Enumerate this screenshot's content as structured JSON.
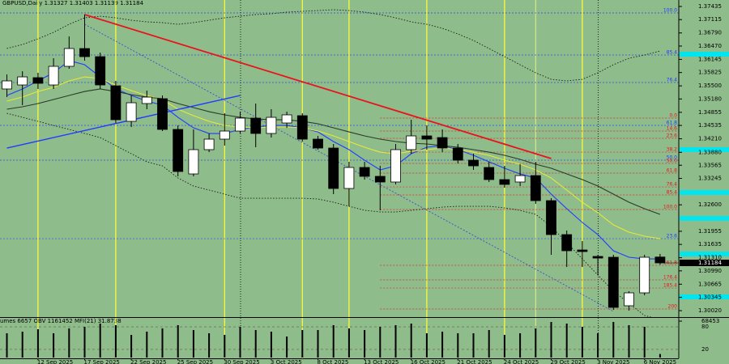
{
  "chart_data": {
    "type": "candlestick",
    "title": "GBPUSD,Daily  1.31327 1.31403 1.31139 1.31184",
    "categories": [
      null,
      null,
      "12 Sep 2025",
      null,
      null,
      "17 Sep 2025",
      null,
      null,
      "22 Sep 2025",
      null,
      null,
      "25 Sep 2025",
      null,
      null,
      "30 Sep 2025",
      null,
      null,
      "3 Oct 2025",
      null,
      null,
      "8 Oct 2025",
      null,
      null,
      "13 Oct 2025",
      null,
      null,
      "16 Oct 2025",
      null,
      null,
      "21 Oct 2025",
      null,
      null,
      "24 Oct 2025",
      null,
      null,
      "29 Oct 2025",
      null,
      null,
      "3 Nov 2025",
      null,
      null,
      "6 Nov 2025",
      null
    ],
    "open": [
      1.35424,
      1.35522,
      1.357,
      1.35522,
      1.35976,
      1.3641,
      1.36212,
      1.35502,
      1.34635,
      1.35069,
      1.35187,
      1.34438,
      1.33353,
      1.33945,
      1.34201,
      1.34398,
      1.34714,
      1.34339,
      1.34595,
      1.34773,
      1.34201,
      1.33984,
      1.32998,
      1.33511,
      1.33294,
      1.33156,
      1.33945,
      1.3428,
      1.3424,
      1.33984,
      1.33688,
      1.33511,
      1.33215,
      1.33156,
      1.33313,
      1.32702,
      1.31874,
      1.31499,
      1.31342,
      1.31322,
      1.30139,
      1.30454,
      1.31327
    ],
    "high": [
      1.35779,
      1.35857,
      1.35818,
      1.36173,
      1.36705,
      1.37238,
      1.36311,
      1.35621,
      1.35266,
      1.35384,
      1.35266,
      1.34536,
      1.34438,
      1.34339,
      1.34832,
      1.34871,
      1.35069,
      1.34931,
      1.34871,
      1.34832,
      1.3428,
      1.34083,
      1.33649,
      1.33649,
      1.3355,
      1.34083,
      1.34674,
      1.34536,
      1.34438,
      1.34083,
      1.33846,
      1.33649,
      1.3355,
      1.33589,
      1.33649,
      1.32761,
      1.31973,
      1.31716,
      1.31381,
      1.31381,
      1.30494,
      1.31381,
      1.31403
    ],
    "low": [
      1.35226,
      1.35029,
      1.35424,
      1.35424,
      1.35917,
      1.36114,
      1.35424,
      1.34595,
      1.34497,
      1.34931,
      1.34398,
      1.33294,
      1.33294,
      1.33885,
      1.34043,
      1.34339,
      1.34004,
      1.3424,
      1.34477,
      1.34142,
      1.33945,
      1.3286,
      1.32564,
      1.33215,
      1.32466,
      1.33097,
      1.33846,
      1.33945,
      1.33885,
      1.33609,
      1.33452,
      1.33156,
      1.33018,
      1.33057,
      1.32623,
      1.31381,
      1.31085,
      1.31085,
      1.30888,
      1.3004,
      1.3002,
      1.30395,
      1.31139
    ],
    "close": [
      1.35621,
      1.35719,
      1.35562,
      1.35976,
      1.3641,
      1.36212,
      1.35522,
      1.34674,
      1.35088,
      1.35226,
      1.34438,
      1.33412,
      1.33945,
      1.34201,
      1.34398,
      1.34714,
      1.34339,
      1.34733,
      1.34793,
      1.34201,
      1.33984,
      1.32998,
      1.33511,
      1.33294,
      1.33156,
      1.33945,
      1.3428,
      1.34201,
      1.33984,
      1.33688,
      1.3355,
      1.33215,
      1.33097,
      1.33313,
      1.32702,
      1.31874,
      1.3148,
      1.3146,
      1.31302,
      1.30099,
      1.30454,
      1.31322,
      1.31184
    ],
    "bull_color": "#ffffff",
    "bear_color": "#000000",
    "background": "#8fbc8b",
    "series": [
      {
        "color": "#1f3cff",
        "style": "solid",
        "values": [
          1.35266,
          1.35424,
          1.35621,
          1.35818,
          1.36114,
          1.36015,
          1.35719,
          1.35424,
          1.35266,
          1.35128,
          1.35029,
          1.34733,
          1.34477,
          1.34339,
          1.34339,
          1.34438,
          1.34497,
          1.34536,
          1.34536,
          1.34477,
          1.34378,
          1.34142,
          1.33945,
          1.33688,
          1.33452,
          1.3355,
          1.33846,
          1.34004,
          1.34043,
          1.33945,
          1.33807,
          1.33649,
          1.33491,
          1.33353,
          1.33254,
          1.3286,
          1.32505,
          1.3217,
          1.31874,
          1.3148,
          1.31322,
          1.31282,
          1.31282
        ]
      },
      {
        "color": "#e8e83a",
        "style": "solid",
        "values": [
          1.35128,
          1.35226,
          1.35364,
          1.35463,
          1.35621,
          1.35719,
          1.3568,
          1.35522,
          1.35384,
          1.35266,
          1.35167,
          1.34931,
          1.34773,
          1.34635,
          1.34536,
          1.34497,
          1.34477,
          1.34497,
          1.34497,
          1.34477,
          1.34398,
          1.3428,
          1.34142,
          1.34004,
          1.33885,
          1.33846,
          1.33905,
          1.33945,
          1.33984,
          1.33945,
          1.33885,
          1.33807,
          1.33688,
          1.3359,
          1.33452,
          1.33254,
          1.32959,
          1.32663,
          1.32406,
          1.32111,
          1.31933,
          1.31835,
          1.31775
        ]
      },
      {
        "color": "#2b3a2b",
        "style": "solid",
        "values": [
          1.34931,
          1.3499,
          1.35069,
          1.35167,
          1.35266,
          1.35364,
          1.35424,
          1.35364,
          1.35286,
          1.35226,
          1.35187,
          1.35069,
          1.3497,
          1.34871,
          1.34793,
          1.34733,
          1.34694,
          1.34674,
          1.34674,
          1.34635,
          1.34576,
          1.34477,
          1.34378,
          1.3428,
          1.34201,
          1.34142,
          1.34102,
          1.34083,
          1.34043,
          1.34004,
          1.33945,
          1.33885,
          1.33807,
          1.33708,
          1.3359,
          1.33491,
          1.33353,
          1.33215,
          1.33057,
          1.3286,
          1.32663,
          1.32505,
          1.32367
        ]
      },
      {
        "color": "#1a1a1a",
        "style": "dotted",
        "values": [
          1.3641,
          1.36508,
          1.36646,
          1.36804,
          1.37001,
          1.37159,
          1.37198,
          1.37159,
          1.371,
          1.3706,
          1.37041,
          1.37001,
          1.37041,
          1.371,
          1.37159,
          1.37198,
          1.37238,
          1.37258,
          1.37297,
          1.37317,
          1.37336,
          1.37356,
          1.37336,
          1.37297,
          1.37238,
          1.37159,
          1.3706,
          1.37001,
          1.36903,
          1.36765,
          1.36607,
          1.3641,
          1.36212,
          1.36015,
          1.35818,
          1.3566,
          1.35621,
          1.3566,
          1.35818,
          1.36015,
          1.36173,
          1.36252,
          1.3635
        ]
      },
      {
        "color": "#1a1a1a",
        "style": "dotted",
        "values": [
          1.34832,
          1.34733,
          1.34635,
          1.34536,
          1.34438,
          1.34339,
          1.3424,
          1.34043,
          1.33846,
          1.33649,
          1.3355,
          1.33254,
          1.33057,
          1.32959,
          1.3286,
          1.32761,
          1.32761,
          1.32761,
          1.32761,
          1.32761,
          1.32742,
          1.32663,
          1.32564,
          1.32466,
          1.32426,
          1.32426,
          1.32466,
          1.32505,
          1.32544,
          1.32564,
          1.32564,
          1.32564,
          1.32525,
          1.32466,
          1.32367,
          1.32071,
          1.31677,
          1.31282,
          1.30888,
          1.30494,
          1.30198,
          1.29902,
          1.29803
        ]
      }
    ],
    "trendlines": [
      {
        "color": "#e8141e",
        "style": "solid",
        "x": [
          5,
          35
        ],
        "values": [
          1.37238,
          1.33728
        ]
      },
      {
        "color": "#1f3cff",
        "style": "solid",
        "x": [
          0,
          15
        ],
        "values": [
          1.33984,
          1.35266
        ]
      },
      {
        "color": "#3a4fd0",
        "style": "dotted",
        "x": [
          5,
          39
        ],
        "values": [
          1.37001,
          1.30001
        ]
      }
    ],
    "levels": [
      {
        "label": "100.0",
        "value": 1.37277,
        "color": "#1f3cff"
      },
      {
        "label": "85.4",
        "value": 1.36252,
        "color": "#1f3cff"
      },
      {
        "label": "76.4",
        "value": 1.35581,
        "color": "#1f3cff"
      },
      {
        "label": "61.8",
        "value": 1.34536,
        "color": "#1f3cff"
      },
      {
        "label": "50.0",
        "value": 1.33688,
        "color": "#1f3cff"
      },
      {
        "label": "23.6",
        "value": 1.31775,
        "color": "#1f3cff"
      },
      {
        "label": "0.0",
        "value": 1.34714,
        "color": "#e8141e"
      },
      {
        "label": "14.6",
        "value": 1.34398,
        "color": "#e8141e"
      },
      {
        "label": "23.6",
        "value": 1.34221,
        "color": "#e8141e"
      },
      {
        "label": "38.2",
        "value": 1.33885,
        "color": "#e8141e"
      },
      {
        "label": "50.0",
        "value": 1.33609,
        "color": "#e8141e"
      },
      {
        "label": "61.8",
        "value": 1.33373,
        "color": "#e8141e"
      },
      {
        "label": "76.4",
        "value": 1.33037,
        "color": "#e8141e"
      },
      {
        "label": "85.4",
        "value": 1.3284,
        "color": "#e8141e"
      },
      {
        "label": "100.0",
        "value": 1.32485,
        "color": "#e8141e"
      },
      {
        "label": "161.8",
        "value": 1.31125,
        "color": "#e8141e"
      },
      {
        "label": "176.4",
        "value": 1.3077,
        "color": "#e8141e"
      },
      {
        "label": "185.4",
        "value": 1.30572,
        "color": "#e8141e"
      },
      {
        "label": "200",
        "value": 1.3006,
        "color": "#e8141e"
      }
    ],
    "ylim": [
      1.29863,
      1.37593
    ],
    "yticks": [
      1.37435,
      1.37115,
      {
        "value": 1.3679,
        "label": "1.36790"
      },
      {
        "value": 1.3647,
        "label": "1.36470"
      },
      1.36145,
      1.35825,
      {
        "value": 1.355,
        "label": "1.35500"
      },
      {
        "value": 1.3518,
        "label": "1.35180"
      },
      1.34855,
      1.34535,
      {
        "value": 1.3421,
        "label": "1.34210"
      },
      {
        "value": 1.3388,
        "label": "1.33880"
      },
      1.33565,
      1.33245,
      {
        "value": 1.326,
        "label": "1.32600"
      },
      1.31955,
      1.31635,
      {
        "value": 1.3131,
        "label": "1.31310"
      },
      {
        "value": 1.3099,
        "label": "1.30990"
      },
      1.30665,
      1.30345,
      {
        "value": 1.3002,
        "label": "1.30020"
      }
    ],
    "volume_panel": {
      "header": "umes 6657  OBV 1161452  MFI(21) 31.8738",
      "color": "#000000",
      "values": [
        45630,
        48672,
        53235,
        45630,
        54756,
        57798,
        63882,
        60840,
        42588,
        48672,
        54756,
        60840,
        51714,
        45630,
        42588,
        57798,
        51714,
        48672,
        39546,
        51714,
        51714,
        60840,
        54756,
        51714,
        57798,
        60840,
        63882,
        45630,
        48672,
        45630,
        45630,
        51714,
        42588,
        45630,
        54756,
        66924,
        63882,
        57798,
        45630,
        66924,
        60840,
        57798,
        6657
      ],
      "ylim": [
        0,
        68453
      ],
      "yticks": [
        68453
      ],
      "mfi_ylim": [
        0,
        100
      ],
      "mfi_ticks": [
        80,
        20
      ]
    }
  }
}
